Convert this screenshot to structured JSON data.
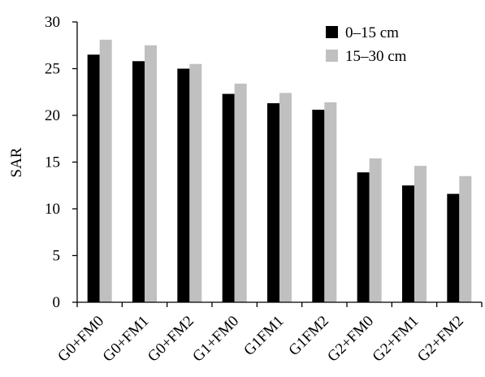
{
  "chart_data": {
    "type": "bar",
    "ylabel": "SAR",
    "xlabel": "",
    "ylim": [
      0,
      30
    ],
    "yticks": [
      0,
      5,
      10,
      15,
      20,
      25,
      30
    ],
    "categories": [
      "G0+FM0",
      "G0+FM1",
      "G0+FM2",
      "G1+FM0",
      "G1FM1",
      "G1FM2",
      "G2+FM0",
      "G2+FM1",
      "G2+FM2"
    ],
    "series": [
      {
        "name": "0–15 cm",
        "color": "#000000",
        "values": [
          26.5,
          25.8,
          25.0,
          22.3,
          21.3,
          20.6,
          13.9,
          12.5,
          11.6
        ]
      },
      {
        "name": "15–30 cm",
        "color": "#c0c0c0",
        "values": [
          28.1,
          27.5,
          25.5,
          23.4,
          22.4,
          21.4,
          15.4,
          14.6,
          13.5
        ]
      }
    ],
    "legend_position": "top-right",
    "grid": false
  }
}
